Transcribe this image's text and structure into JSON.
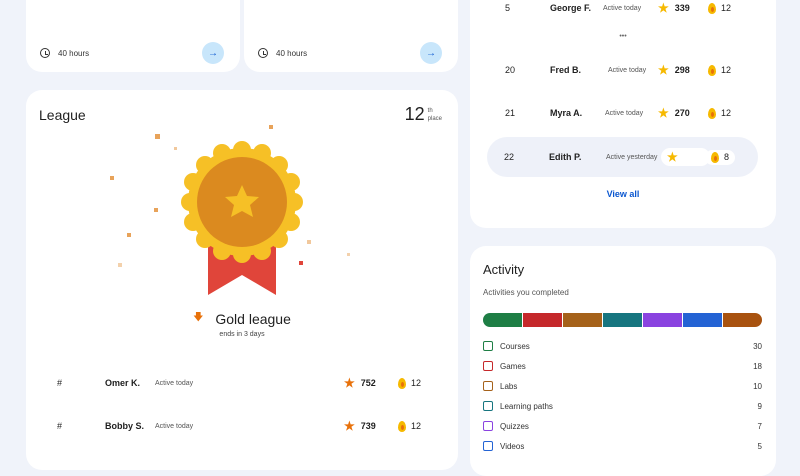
{
  "courses": [
    {
      "hours": "40 hours",
      "arrow": "→"
    },
    {
      "hours": "40 hours",
      "arrow": "→"
    }
  ],
  "league": {
    "title": "League",
    "place": "12",
    "place_suffix": "th",
    "place_label": "place",
    "league_name": "Gold league",
    "ends": "ends in 3 days",
    "rows": [
      {
        "rank": "#",
        "name": "Omer K.",
        "status": "Active today",
        "points": "752",
        "streak": "12"
      },
      {
        "rank": "#",
        "name": "Bobby S.",
        "status": "Active today",
        "points": "739",
        "streak": "12"
      }
    ]
  },
  "leaderboard": {
    "rows": [
      {
        "rank": "5",
        "name": "George F.",
        "status": "Active today",
        "points": "339",
        "streak": "12"
      },
      {
        "rank": "20",
        "name": "Fred B.",
        "status": "Active today",
        "points": "298",
        "streak": "12"
      },
      {
        "rank": "21",
        "name": "Myra A.",
        "status": "Active today",
        "points": "270",
        "streak": "12"
      },
      {
        "rank": "22",
        "name": "Edith P.",
        "status": "Active yesterday",
        "points": "",
        "streak": "8"
      }
    ],
    "ellipsis": "•••",
    "view_all": "View all"
  },
  "activity": {
    "title": "Activity",
    "subtitle": "Activities you completed",
    "items": [
      {
        "label": "Courses",
        "count": "30",
        "color": "#1e7e45",
        "icon": "book-icon"
      },
      {
        "label": "Games",
        "count": "18",
        "color": "#c5282a",
        "icon": "game-icon"
      },
      {
        "label": "Labs",
        "count": "10",
        "color": "#a5611a",
        "icon": "flask-icon"
      },
      {
        "label": "Learning paths",
        "count": "9",
        "color": "#17757f",
        "icon": "path-icon"
      },
      {
        "label": "Quizzes",
        "count": "7",
        "color": "#8a43e0",
        "icon": "quiz-icon"
      },
      {
        "label": "Videos",
        "count": "5",
        "color": "#2463d4",
        "icon": "video-icon"
      }
    ],
    "bar_colors": [
      "#1e7e45",
      "#c5282a",
      "#a5611a",
      "#17757f",
      "#8a43e0",
      "#2463d4",
      "#a8520f"
    ]
  }
}
